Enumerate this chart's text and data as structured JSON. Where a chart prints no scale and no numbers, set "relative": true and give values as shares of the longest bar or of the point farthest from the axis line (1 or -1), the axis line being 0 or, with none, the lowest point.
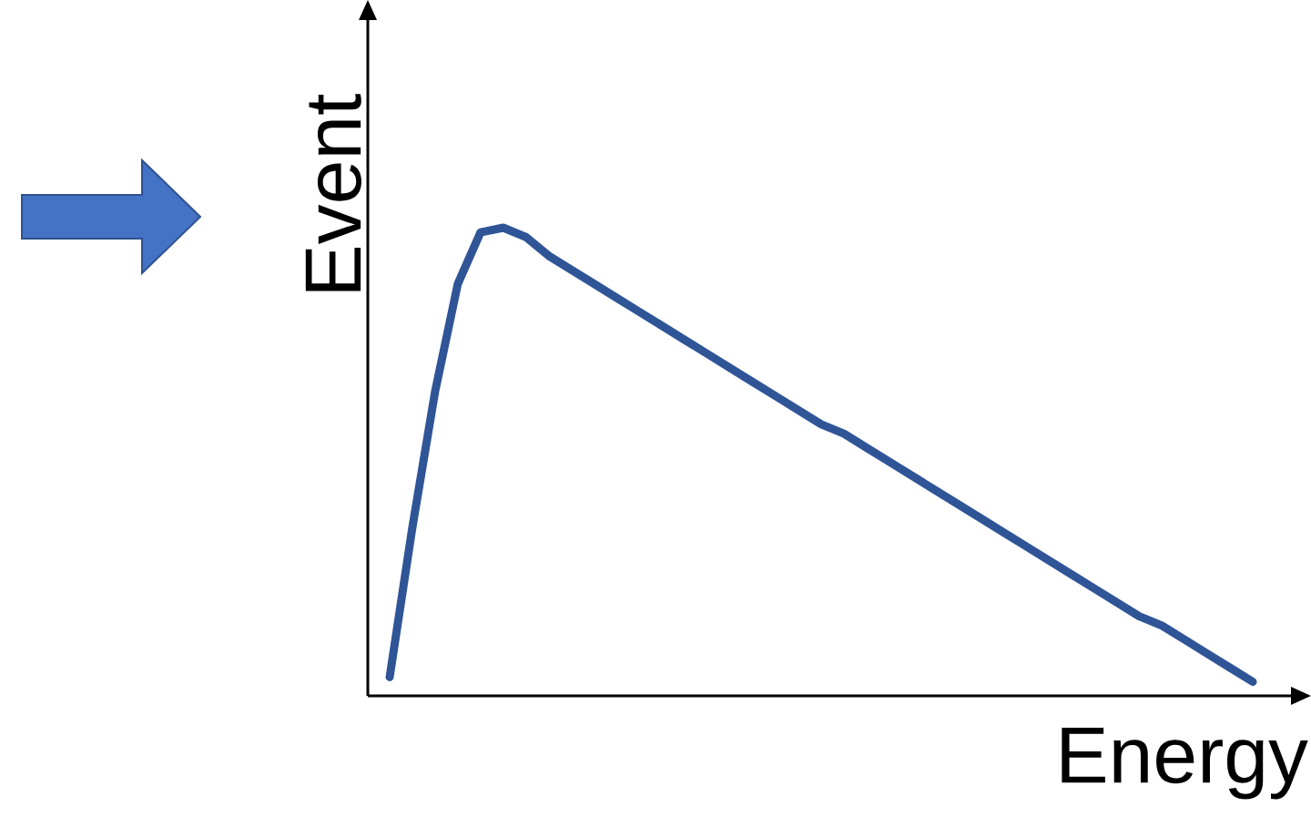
{
  "chart_data": {
    "type": "line",
    "xlabel": "Energy",
    "ylabel": "Event",
    "relative": true,
    "categories": [
      null,
      null,
      null,
      null,
      null,
      null,
      null,
      null,
      null,
      null,
      null,
      null,
      null,
      null,
      null,
      null,
      null,
      null,
      null,
      null,
      null,
      null,
      null,
      null,
      null,
      null,
      null,
      null,
      null,
      null,
      null,
      null,
      null,
      null,
      null,
      null,
      null,
      null,
      null
    ],
    "series": [
      {
        "color": "#2f5597",
        "values": [
          0.04,
          0.36,
          0.65,
          0.88,
          0.99,
          1.0,
          0.98,
          0.94,
          0.91,
          0.88,
          0.85,
          0.82,
          0.79,
          0.76,
          0.73,
          0.7,
          0.67,
          0.64,
          0.61,
          0.58,
          0.56,
          0.53,
          0.5,
          0.47,
          0.44,
          0.41,
          0.38,
          0.35,
          0.32,
          0.29,
          0.26,
          0.23,
          0.2,
          0.17,
          0.15,
          0.12,
          0.09,
          0.06,
          0.03
        ]
      }
    ]
  }
}
